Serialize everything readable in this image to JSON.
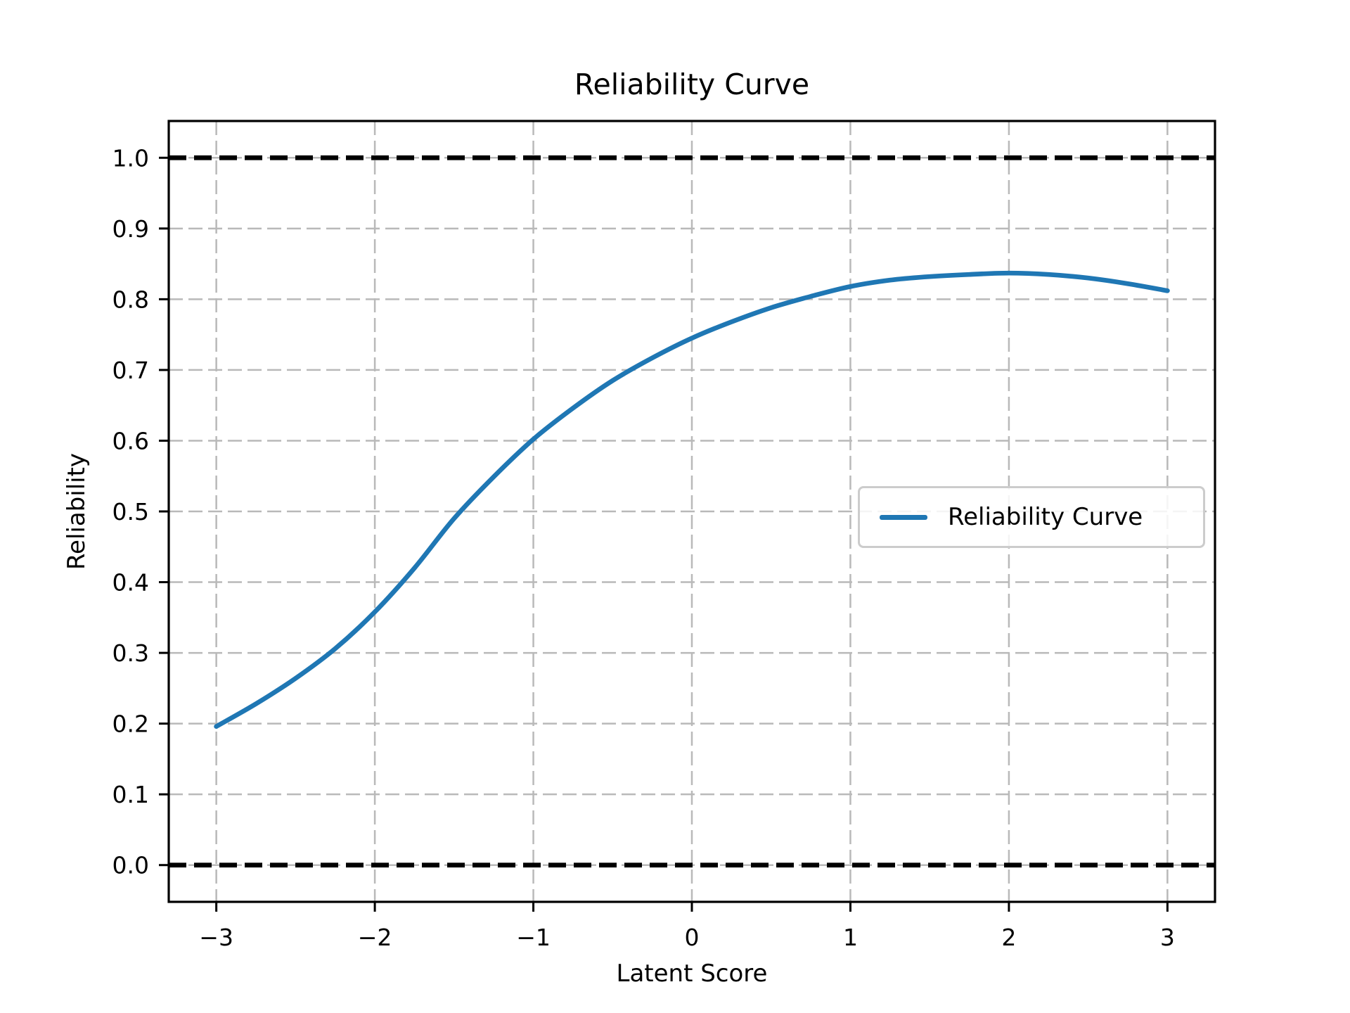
{
  "chart_data": {
    "type": "line",
    "title": "Reliability Curve",
    "xlabel": "Latent Score",
    "ylabel": "Reliability",
    "xlim": [
      -3.3,
      3.3
    ],
    "ylim": [
      -0.052,
      1.052
    ],
    "x_ticks": [
      -3,
      -2,
      -1,
      0,
      1,
      2,
      3
    ],
    "x_tick_labels": [
      "−3",
      "−2",
      "−1",
      "0",
      "1",
      "2",
      "3"
    ],
    "y_ticks": [
      0.0,
      0.1,
      0.2,
      0.3,
      0.4,
      0.5,
      0.6,
      0.7,
      0.8,
      0.9,
      1.0
    ],
    "y_tick_labels": [
      "0.0",
      "0.1",
      "0.2",
      "0.3",
      "0.4",
      "0.5",
      "0.6",
      "0.7",
      "0.8",
      "0.9",
      "1.0"
    ],
    "grid": {
      "visible": true,
      "style": "dashed",
      "color": "#b9b9b9"
    },
    "legend": {
      "position": "center right",
      "entries": [
        {
          "label": "Reliability Curve",
          "color": "#1f77b4",
          "style": "solid"
        }
      ]
    },
    "reference_lines": [
      {
        "y": 0.0,
        "color": "#000000",
        "style": "dashed"
      },
      {
        "y": 1.0,
        "color": "#000000",
        "style": "dashed"
      }
    ],
    "series": [
      {
        "name": "Reliability Curve",
        "color": "#1f77b4",
        "style": "solid",
        "x": [
          -3.0,
          -2.75,
          -2.5,
          -2.25,
          -2.0,
          -1.75,
          -1.5,
          -1.25,
          -1.0,
          -0.75,
          -0.5,
          -0.25,
          0.0,
          0.25,
          0.5,
          0.75,
          1.0,
          1.25,
          1.5,
          1.75,
          2.0,
          2.25,
          2.5,
          2.75,
          3.0
        ],
        "y": [
          0.196,
          0.228,
          0.264,
          0.306,
          0.358,
          0.42,
          0.49,
          0.549,
          0.602,
          0.646,
          0.685,
          0.717,
          0.745,
          0.768,
          0.788,
          0.804,
          0.818,
          0.827,
          0.832,
          0.835,
          0.837,
          0.835,
          0.83,
          0.822,
          0.812
        ]
      }
    ]
  }
}
